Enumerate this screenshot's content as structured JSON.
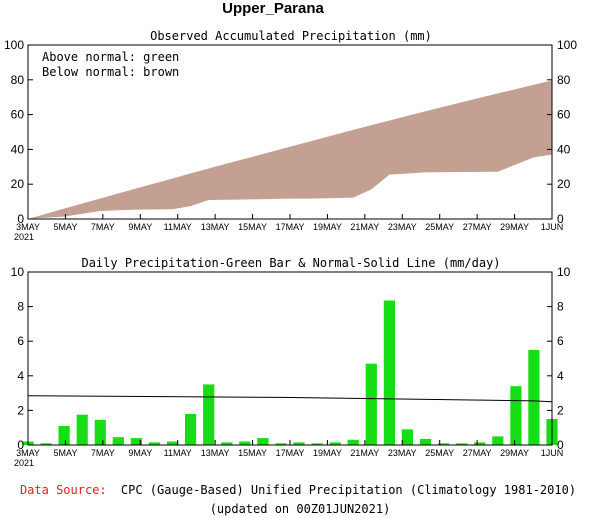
{
  "page_title": "Upper_Parana",
  "footer": {
    "source_label": "Data Source:",
    "source_text": "CPC (Gauge-Based) Unified Precipitation (Climatology 1981-2010)",
    "updated": "(updated on 00Z01JUN2021)"
  },
  "colors": {
    "accumulated_fill": "#c4a092",
    "daily_bar": "#16dd16",
    "normal_line": "#000000",
    "source_label": "#dd2222"
  },
  "x_labels": {
    "year": "2021",
    "dates": [
      "3MAY",
      "5MAY",
      "7MAY",
      "9MAY",
      "11MAY",
      "13MAY",
      "15MAY",
      "17MAY",
      "19MAY",
      "21MAY",
      "23MAY",
      "25MAY",
      "27MAY",
      "29MAY",
      "1JUN"
    ]
  },
  "chart_data": [
    {
      "type": "area",
      "title": "Observed Accumulated Precipitation (mm)",
      "legend_lines": [
        "Above normal: green",
        "Below normal: brown"
      ],
      "legend_placement": "top-left",
      "xlim": [
        "2021-05-03",
        "2021-06-01"
      ],
      "ylim": [
        0,
        100
      ],
      "yticks": [
        0,
        20,
        40,
        60,
        80,
        100
      ],
      "x": [
        "2021-05-03",
        "2021-05-05",
        "2021-05-07",
        "2021-05-09",
        "2021-05-11",
        "2021-05-12",
        "2021-05-13",
        "2021-05-15",
        "2021-05-17",
        "2021-05-19",
        "2021-05-21",
        "2021-05-22",
        "2021-05-23",
        "2021-05-25",
        "2021-05-27",
        "2021-05-29",
        "2021-05-31",
        "2021-06-01"
      ],
      "series": [
        {
          "name": "Observed",
          "values": [
            0.2,
            1.4,
            4.6,
            5.4,
            5.6,
            7.4,
            10.9,
            11.2,
            11.6,
            11.8,
            12.3,
            17.0,
            25.5,
            26.8,
            27.0,
            27.2,
            35.5,
            37.0
          ]
        },
        {
          "name": "Normal",
          "values": [
            0.0,
            6.0,
            11.8,
            17.6,
            23.3,
            26.2,
            29.0,
            34.6,
            40.2,
            45.7,
            51.2,
            53.9,
            56.6,
            61.9,
            67.1,
            72.2,
            77.2,
            79.6
          ]
        }
      ]
    },
    {
      "type": "bar",
      "title": "Daily Precipitation-Green Bar & Normal-Solid Line (mm/day)",
      "xlim": [
        "2021-05-03",
        "2021-06-01"
      ],
      "ylim": [
        0,
        10
      ],
      "yticks": [
        0,
        2,
        4,
        6,
        8,
        10
      ],
      "x": [
        "2021-05-03",
        "2021-05-04",
        "2021-05-05",
        "2021-05-06",
        "2021-05-07",
        "2021-05-08",
        "2021-05-09",
        "2021-05-10",
        "2021-05-11",
        "2021-05-12",
        "2021-05-13",
        "2021-05-14",
        "2021-05-15",
        "2021-05-16",
        "2021-05-17",
        "2021-05-18",
        "2021-05-19",
        "2021-05-20",
        "2021-05-21",
        "2021-05-22",
        "2021-05-23",
        "2021-05-24",
        "2021-05-25",
        "2021-05-26",
        "2021-05-27",
        "2021-05-28",
        "2021-05-29",
        "2021-05-30",
        "2021-05-31",
        "2021-06-01"
      ],
      "series": [
        {
          "name": "Daily Precipitation",
          "values": [
            0.2,
            0.1,
            1.1,
            1.75,
            1.45,
            0.45,
            0.4,
            0.15,
            0.2,
            1.8,
            3.5,
            0.15,
            0.2,
            0.4,
            0.1,
            0.15,
            0.1,
            0.15,
            0.3,
            4.7,
            8.35,
            0.9,
            0.35,
            0.1,
            0.1,
            0.15,
            0.5,
            3.4,
            5.5,
            1.5
          ]
        },
        {
          "name": "Normal",
          "x": [
            "2021-05-03",
            "2021-05-17",
            "2021-05-31",
            "2021-06-01"
          ],
          "values": [
            2.85,
            2.75,
            2.55,
            2.5
          ]
        }
      ]
    }
  ]
}
